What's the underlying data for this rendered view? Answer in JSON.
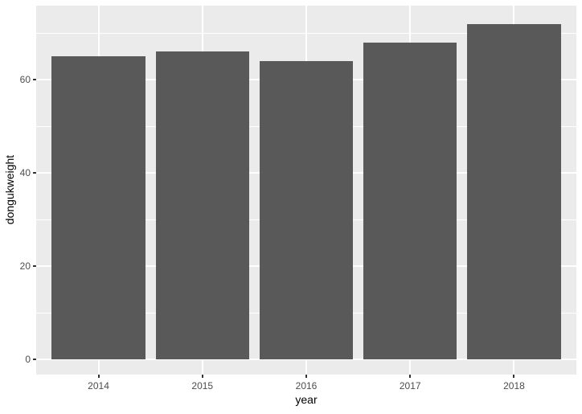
{
  "chart_data": {
    "type": "bar",
    "categories": [
      "2014",
      "2015",
      "2016",
      "2017",
      "2018"
    ],
    "values": [
      65,
      66,
      64,
      68,
      72
    ],
    "title": "",
    "xlabel": "year",
    "ylabel": "dongukweight",
    "ylim": [
      -3.2,
      75.9
    ],
    "y_major_ticks": [
      0,
      20,
      40,
      60
    ],
    "y_minor_ticks": [
      10,
      30,
      50,
      70
    ],
    "bar_width_fraction": 0.9,
    "grid": true,
    "legend": false
  },
  "colors": {
    "figure_bg": "#FFFFFF",
    "panel_bg": "#EBEBEB",
    "grid": "#FFFFFF",
    "bar_fill": "#595959",
    "tick_mark": "#333333",
    "tick_label": "#4D4D4D",
    "axis_title": "#000000"
  }
}
